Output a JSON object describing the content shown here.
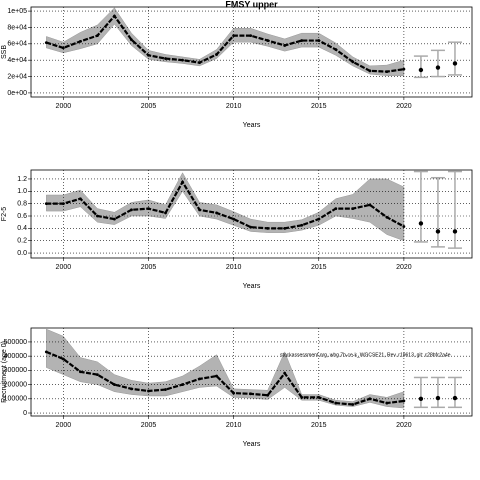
{
  "chart_data": [
    {
      "type": "line",
      "title": "FMSY upper",
      "x_label": "Years",
      "y_label": "SSB",
      "x": [
        1999,
        2000,
        2001,
        2002,
        2003,
        2004,
        2005,
        2006,
        2007,
        2008,
        2009,
        2010,
        2011,
        2012,
        2013,
        2014,
        2015,
        2016,
        2017,
        2018,
        2019,
        2020
      ],
      "values": [
        61500,
        55000,
        63000,
        70000,
        94000,
        65000,
        46000,
        42000,
        40000,
        37000,
        47000,
        70000,
        70000,
        64000,
        58000,
        64000,
        64000,
        53000,
        38000,
        27000,
        26000,
        29000
      ],
      "upper": [
        69000,
        62000,
        74000,
        83000,
        104000,
        73000,
        52000,
        47000,
        44000,
        41000,
        53000,
        79000,
        79000,
        72000,
        66000,
        73000,
        73000,
        61000,
        44000,
        33000,
        34000,
        40000
      ],
      "lower": [
        55000,
        49000,
        54000,
        60000,
        84000,
        58000,
        41000,
        38000,
        36000,
        33000,
        42000,
        62000,
        62000,
        57000,
        51000,
        56000,
        56000,
        46000,
        33000,
        23000,
        21000,
        21000
      ],
      "proj_x": [
        2021,
        2022,
        2023
      ],
      "proj_values": [
        28000,
        31000,
        36000
      ],
      "proj_upper": [
        45000,
        52000,
        62000
      ],
      "proj_lower": [
        19000,
        20000,
        22000
      ],
      "xlim": [
        1998.1,
        2024
      ],
      "xticks": [
        2000,
        2005,
        2010,
        2015,
        2020
      ],
      "ylim": [
        -5000,
        105000
      ],
      "yticks": [
        {
          "value": 0,
          "label": "0e+00"
        },
        {
          "value": 20000,
          "label": "2e+04"
        },
        {
          "value": 40000,
          "label": "4e+04"
        },
        {
          "value": 60000,
          "label": "6e+04"
        },
        {
          "value": 80000,
          "label": "8e+04"
        },
        {
          "value": 100000,
          "label": "1e+05"
        }
      ],
      "grid": true,
      "color": "#000000",
      "band_color": "#b3b3b3"
    },
    {
      "type": "line",
      "x_label": "Years",
      "y_label": "F2-5",
      "x": [
        1999,
        2000,
        2001,
        2002,
        2003,
        2004,
        2005,
        2006,
        2007,
        2008,
        2009,
        2010,
        2011,
        2012,
        2013,
        2014,
        2015,
        2016,
        2017,
        2018,
        2019,
        2020
      ],
      "values": [
        0.8,
        0.8,
        0.88,
        0.6,
        0.55,
        0.7,
        0.72,
        0.65,
        1.15,
        0.7,
        0.65,
        0.55,
        0.42,
        0.4,
        0.4,
        0.45,
        0.55,
        0.72,
        0.72,
        0.78,
        0.58,
        0.43
      ],
      "upper": [
        0.94,
        0.94,
        1.02,
        0.72,
        0.66,
        0.82,
        0.86,
        0.78,
        1.3,
        0.82,
        0.78,
        0.67,
        0.55,
        0.5,
        0.5,
        0.54,
        0.66,
        0.88,
        0.95,
        1.2,
        1.2,
        1.07
      ],
      "lower": [
        0.68,
        0.68,
        0.75,
        0.5,
        0.46,
        0.6,
        0.6,
        0.56,
        1.0,
        0.6,
        0.55,
        0.45,
        0.35,
        0.33,
        0.33,
        0.37,
        0.45,
        0.6,
        0.56,
        0.5,
        0.3,
        0.2
      ],
      "proj_x": [
        2021,
        2022,
        2023
      ],
      "proj_values": [
        0.48,
        0.35,
        0.35
      ],
      "proj_upper": [
        1.32,
        1.22,
        1.32
      ],
      "proj_lower": [
        0.18,
        0.1,
        0.08
      ],
      "xlim": [
        1998.1,
        2024
      ],
      "xticks": [
        2000,
        2005,
        2010,
        2015,
        2020
      ],
      "ylim": [
        -0.08,
        1.345
      ],
      "yticks": [
        {
          "value": 0,
          "label": "0.0"
        },
        0.2,
        0.4,
        0.6,
        0.8,
        {
          "value": 1,
          "label": "1.0"
        },
        1.2
      ],
      "grid": true,
      "color": "#000000",
      "band_color": "#b3b3b3"
    },
    {
      "type": "line",
      "x_label": "Years",
      "y_label": "Recruitment (age 0)",
      "annotation": "stockassessment.org, whg.7b-ce-k_WGCSE21, Rev. r19613, git: c28bfc2a4e",
      "x": [
        1999,
        2000,
        2001,
        2002,
        2003,
        2004,
        2005,
        2006,
        2007,
        2008,
        2009,
        2010,
        2011,
        2012,
        2013,
        2014,
        2015,
        2016,
        2017,
        2018,
        2019,
        2020
      ],
      "values": [
        430000,
        380000,
        290000,
        270000,
        200000,
        170000,
        155000,
        165000,
        200000,
        240000,
        260000,
        140000,
        135000,
        125000,
        280000,
        110000,
        110000,
        70000,
        60000,
        100000,
        70000,
        85000
      ],
      "upper": [
        590000,
        540000,
        390000,
        360000,
        270000,
        230000,
        210000,
        220000,
        260000,
        330000,
        410000,
        170000,
        165000,
        160000,
        430000,
        130000,
        130000,
        90000,
        80000,
        130000,
        110000,
        150000
      ],
      "lower": [
        320000,
        270000,
        220000,
        200000,
        150000,
        130000,
        120000,
        120000,
        150000,
        180000,
        190000,
        110000,
        105000,
        95000,
        180000,
        90000,
        90000,
        55000,
        45000,
        75000,
        45000,
        35000
      ],
      "proj_x": [
        2021,
        2022,
        2023
      ],
      "proj_values": [
        100000,
        105000,
        105000
      ],
      "proj_upper": [
        250000,
        250000,
        250000
      ],
      "proj_lower": [
        40000,
        40000,
        40000
      ],
      "xlim": [
        1998.1,
        2024
      ],
      "xticks": [
        2000,
        2005,
        2010,
        2015,
        2020
      ],
      "ylim": [
        -21000,
        598000
      ],
      "yticks": [
        0,
        100000,
        200000,
        300000,
        400000,
        500000
      ],
      "grid": true,
      "color": "#000000",
      "band_color": "#b3b3b3"
    }
  ]
}
